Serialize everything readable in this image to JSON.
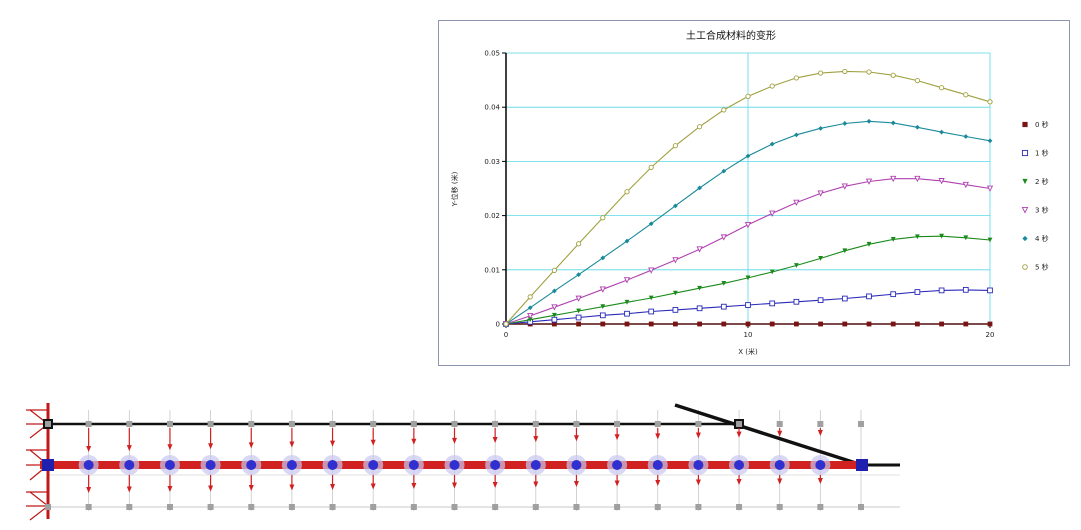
{
  "chart_data": {
    "type": "line",
    "title": "土工合成材料的变形",
    "xlabel": "X (米)",
    "ylabel": "Y-位移 (米)",
    "xlim": [
      0,
      20
    ],
    "ylim": [
      0,
      0.05
    ],
    "xticks": [
      "0",
      "10",
      "20"
    ],
    "yticks": [
      "0",
      "0.01",
      "0.02",
      "0.03",
      "0.04",
      "0.05"
    ],
    "grid": true,
    "legend_position": "right",
    "x": [
      0,
      1,
      2,
      3,
      4,
      5,
      6,
      7,
      8,
      9,
      10,
      11,
      12,
      13,
      14,
      15,
      16,
      17,
      18,
      19,
      20
    ],
    "series": [
      {
        "name": "0 秒",
        "color": "#7a1414",
        "marker": "square",
        "values": [
          0,
          0,
          0,
          0,
          0,
          0,
          0,
          0,
          0,
          0,
          0,
          0,
          0,
          0,
          0,
          0,
          0,
          0,
          0,
          0,
          0
        ]
      },
      {
        "name": "1 秒",
        "color": "#2a2ab8",
        "marker": "open-square",
        "values": [
          0,
          0.0004,
          0.0008,
          0.0012,
          0.0016,
          0.0019,
          0.0023,
          0.0026,
          0.0029,
          0.0032,
          0.0035,
          0.0038,
          0.0041,
          0.0044,
          0.0047,
          0.0051,
          0.0055,
          0.0059,
          0.0062,
          0.0063,
          0.0062
        ]
      },
      {
        "name": "2 秒",
        "color": "#1a8a1a",
        "marker": "down-triangle",
        "values": [
          0,
          0.0008,
          0.0016,
          0.0024,
          0.0032,
          0.004,
          0.0048,
          0.0057,
          0.0066,
          0.0075,
          0.0085,
          0.0096,
          0.0108,
          0.0121,
          0.0135,
          0.0147,
          0.0156,
          0.0161,
          0.0162,
          0.0159,
          0.0155
        ]
      },
      {
        "name": "3 秒",
        "color": "#b040b0",
        "marker": "open-down-triangle",
        "values": [
          0,
          0.0015,
          0.0031,
          0.0047,
          0.0064,
          0.0081,
          0.0099,
          0.0118,
          0.0138,
          0.016,
          0.0183,
          0.0204,
          0.0224,
          0.0241,
          0.0254,
          0.0263,
          0.0268,
          0.0268,
          0.0264,
          0.0257,
          0.025
        ]
      },
      {
        "name": "4 秒",
        "color": "#1a8a9a",
        "marker": "diamond",
        "values": [
          0,
          0.003,
          0.0061,
          0.0091,
          0.0122,
          0.0153,
          0.0185,
          0.0218,
          0.0251,
          0.0282,
          0.031,
          0.0332,
          0.0349,
          0.0361,
          0.037,
          0.0374,
          0.0371,
          0.0363,
          0.0354,
          0.0346,
          0.0338
        ]
      },
      {
        "name": "5 秒",
        "color": "#a0a040",
        "marker": "open-circle",
        "values": [
          0,
          0.005,
          0.0099,
          0.0148,
          0.0196,
          0.0244,
          0.0289,
          0.0329,
          0.0364,
          0.0395,
          0.042,
          0.0439,
          0.0454,
          0.0463,
          0.0466,
          0.0465,
          0.0459,
          0.0449,
          0.0436,
          0.0423,
          0.041
        ]
      }
    ]
  }
}
